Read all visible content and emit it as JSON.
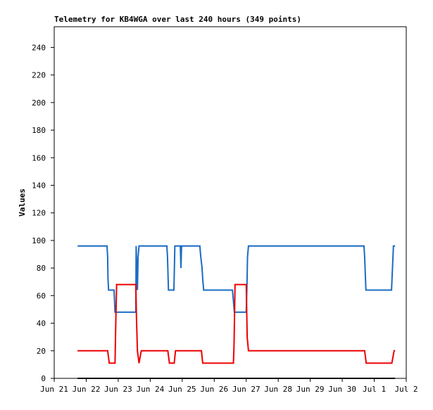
{
  "chart_data": {
    "type": "line",
    "title": "Telemetry for KB4WGA over last 240 hours (349 points)",
    "y_label": "Values",
    "xlim": [
      0,
      11
    ],
    "xticks": [
      {
        "value": 0,
        "label": "Jun 21"
      },
      {
        "value": 1,
        "label": "Jun 22"
      },
      {
        "value": 2,
        "label": "Jun 23"
      },
      {
        "value": 3,
        "label": "Jun 24"
      },
      {
        "value": 4,
        "label": "Jun 25"
      },
      {
        "value": 5,
        "label": "Jun 26"
      },
      {
        "value": 6,
        "label": "Jun 27"
      },
      {
        "value": 7,
        "label": "Jun 28"
      },
      {
        "value": 8,
        "label": "Jun 29"
      },
      {
        "value": 9,
        "label": "Jun 30"
      },
      {
        "value": 10,
        "label": "Jul 1"
      },
      {
        "value": 11,
        "label": "Jul 2"
      }
    ],
    "ylim": [
      0,
      255
    ],
    "yticks": [
      0,
      20,
      40,
      60,
      80,
      100,
      120,
      140,
      160,
      180,
      200,
      220,
      240
    ],
    "grid": false,
    "series": [
      {
        "color": "#1a6cc4",
        "x": [
          0.73,
          1.65,
          1.67,
          1.68,
          1.7,
          1.87,
          1.9,
          2.55,
          2.56,
          2.6,
          2.62,
          2.65,
          3.52,
          3.54,
          3.57,
          3.74,
          3.77,
          3.94,
          3.96,
          3.98,
          4.55,
          4.58,
          4.62,
          4.64,
          4.67,
          5.57,
          5.6,
          5.63,
          6.0,
          6.02,
          6.04,
          6.07,
          9.68,
          9.7,
          9.74,
          10.54,
          10.57,
          10.6,
          10.65
        ],
        "values": [
          96,
          96,
          88,
          72,
          64,
          64,
          48,
          48,
          96,
          64,
          88,
          96,
          96,
          88,
          64,
          64,
          96,
          96,
          80,
          96,
          96,
          88,
          80,
          72,
          64,
          64,
          56,
          48,
          48,
          64,
          88,
          96,
          96,
          88,
          64,
          64,
          80,
          96,
          96
        ]
      },
      {
        "color": "#ee0000",
        "x": [
          0.73,
          1.67,
          1.72,
          1.9,
          1.92,
          1.95,
          2.55,
          2.57,
          2.6,
          2.65,
          2.72,
          3.55,
          3.6,
          3.75,
          3.79,
          4.6,
          4.64,
          5.6,
          5.62,
          5.65,
          6.0,
          6.03,
          6.07,
          9.7,
          9.75,
          10.55,
          10.62,
          10.65
        ],
        "values": [
          20,
          20,
          11,
          11,
          36,
          68,
          68,
          44,
          20,
          11,
          20,
          20,
          11,
          11,
          20,
          20,
          11,
          11,
          25,
          68,
          68,
          30,
          20,
          20,
          11,
          11,
          20,
          20
        ]
      },
      {
        "color": "#000000",
        "x": [
          0.73,
          10.65
        ],
        "values": [
          0,
          0
        ]
      }
    ]
  }
}
